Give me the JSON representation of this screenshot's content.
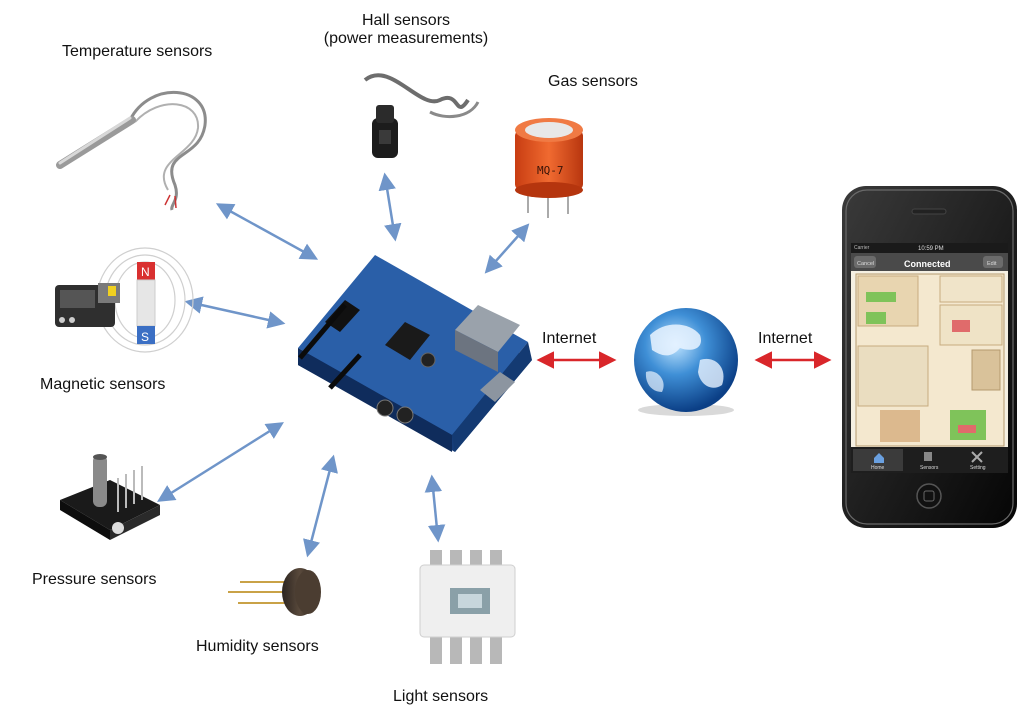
{
  "sensors": {
    "temperature": "Temperature sensors",
    "hall_line1": "Hall sensors",
    "hall_line2": "(power measurements)",
    "gas": "Gas sensors",
    "magnetic": "Magnetic sensors",
    "pressure": "Pressure sensors",
    "humidity": "Humidity sensors",
    "light": "Light sensors"
  },
  "network": {
    "internet_left": "Internet",
    "internet_right": "Internet"
  },
  "phone": {
    "carrier": "Carrier",
    "time": "10:59 PM",
    "nav_left": "Cancel",
    "nav_title": "Connected",
    "nav_right": "Edit",
    "tabs": [
      "Home",
      "Sensors",
      "Setting"
    ]
  },
  "gas_chip_label": "MQ-7",
  "magnet_n": "N",
  "magnet_s": "S",
  "colors": {
    "blue_arrow": "#6f95c9",
    "red_arrow": "#d9262a",
    "board": "#2a5fa8",
    "gas_sensor": "#e0521f"
  }
}
